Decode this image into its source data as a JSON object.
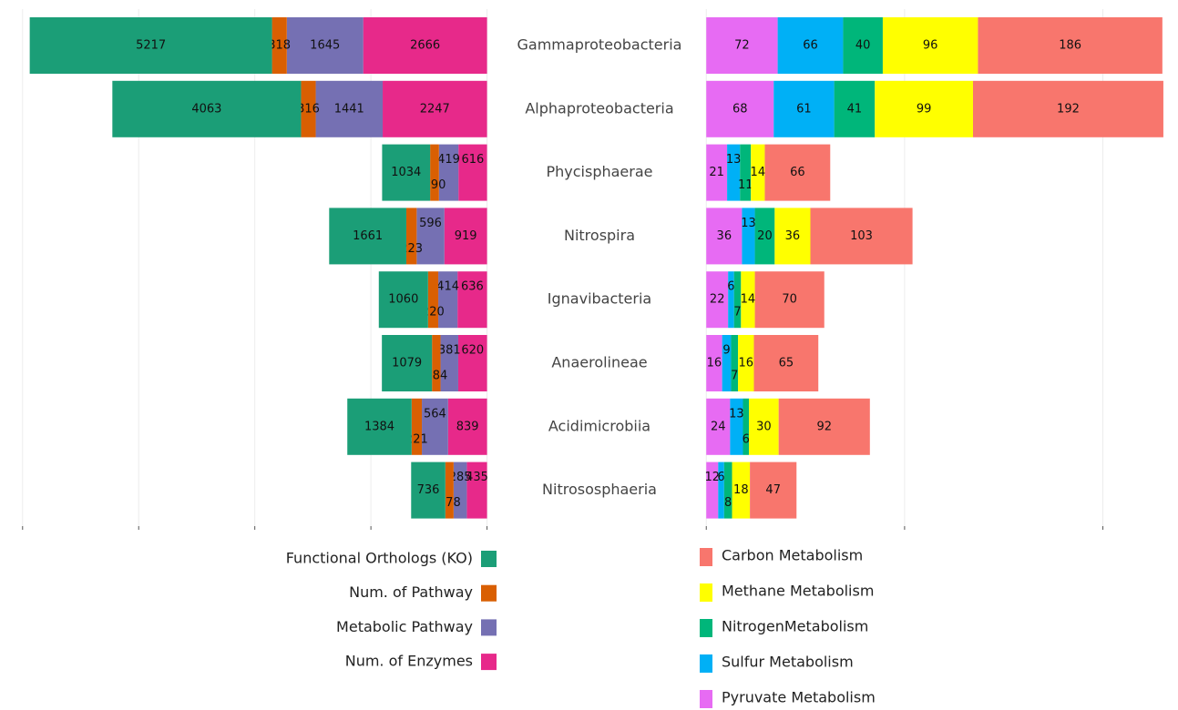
{
  "chart_data": [
    {
      "type": "bar",
      "orientation": "horizontal",
      "stacked": true,
      "x_reversed": true,
      "grid": true,
      "categories": [
        "Gammaproteobacteria",
        "Alphaproteobacteria",
        "Phycisphaerae",
        "Nitrospira",
        "Ignavibacteria",
        "Anaerolineae",
        "Acidimicrobiia",
        "Nitrososphaeria"
      ],
      "xlim": [
        -440,
        10290
      ],
      "xticks": [
        0,
        2500,
        5000,
        7500,
        10000
      ],
      "series": [
        {
          "name": "Functional Orthologs (KO)",
          "color": "#1b9e77",
          "values": [
            5217,
            4063,
            1034,
            1661,
            1060,
            1079,
            1384,
            736
          ]
        },
        {
          "name": "Num. of Pathway",
          "color": "#d95f02",
          "values": [
            318,
            316,
            190,
            223,
            220,
            184,
            221,
            178
          ]
        },
        {
          "name": "Metabolic Pathway",
          "color": "#7570b3",
          "values": [
            1645,
            1441,
            419,
            596,
            414,
            381,
            564,
            285
          ]
        },
        {
          "name": "Num. of Enzymes",
          "color": "#e7298a",
          "values": [
            2666,
            2247,
            616,
            919,
            636,
            620,
            839,
            435
          ]
        }
      ]
    },
    {
      "type": "bar",
      "orientation": "horizontal",
      "stacked": true,
      "x_reversed": false,
      "grid": true,
      "xlim": [
        -14,
        473
      ],
      "xticks": [
        0,
        200,
        400
      ],
      "series": [
        {
          "name": "Carbon Metabolism",
          "color": "#f8766d",
          "values": [
            186,
            192,
            66,
            103,
            70,
            65,
            92,
            47
          ]
        },
        {
          "name": "Methane Metabolism",
          "color": "#ffff00",
          "values": [
            96,
            99,
            14,
            36,
            14,
            16,
            30,
            18
          ]
        },
        {
          "name": "NitrogenMetabolism",
          "color": "#00b67a",
          "values": [
            40,
            41,
            11,
            20,
            7,
            7,
            6,
            8
          ]
        },
        {
          "name": "Sulfur Metabolism",
          "color": "#00b0f6",
          "values": [
            66,
            61,
            13,
            13,
            6,
            9,
            13,
            6
          ]
        },
        {
          "name": "Pyruvate Metabolism",
          "color": "#e76bf3",
          "values": [
            72,
            68,
            21,
            36,
            22,
            16,
            24,
            12
          ]
        }
      ]
    }
  ]
}
